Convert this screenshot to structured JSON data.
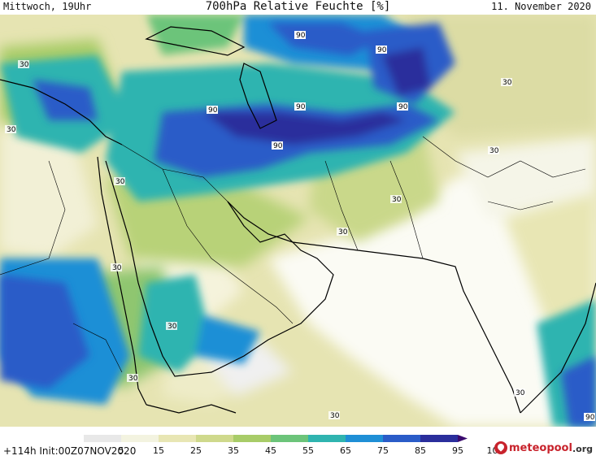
{
  "header": {
    "valid_time": "Mittwoch, 19Uhr",
    "title": "700hPa Relative Feuchte [%]",
    "date": "11. November 2020"
  },
  "colorbar": {
    "ticks": [
      "5",
      "15",
      "25",
      "35",
      "45",
      "55",
      "65",
      "75",
      "85",
      "95",
      "100"
    ],
    "colors": [
      "#e8e8e8",
      "#f3f3e0",
      "#e8e6b4",
      "#cfd98c",
      "#a8cc68",
      "#6cc47a",
      "#2fb4b0",
      "#1f8fd6",
      "#2a5cc8",
      "#2a2e9c",
      "#3a0a6e"
    ]
  },
  "run_info": "+114h Init:00Z07NOV2020",
  "logo": {
    "name": "meteopool",
    "tld": ".org"
  },
  "contour_labels": {
    "thirty": "30",
    "ninety": "90"
  }
}
